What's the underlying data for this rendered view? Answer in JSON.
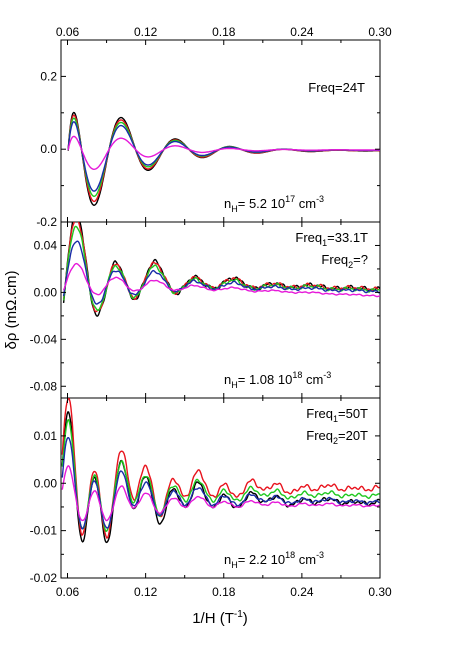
{
  "chart_data": {
    "type": "line",
    "xlabel": "1/H (T",
    "xlabel_exp": "-1",
    "xlabel_close": ")",
    "ylabel": "δρ (mΩ.cm)",
    "x_ticks": [
      "0.06",
      "0.12",
      "0.18",
      "0.24",
      "0.30"
    ],
    "x_tick_values": [
      0.06,
      0.12,
      0.18,
      0.24,
      0.3
    ],
    "xlim": [
      0.055,
      0.3
    ],
    "series_colors": [
      "#000000",
      "#e8141e",
      "#1fc81f",
      "#1a2ca8",
      "#e619d9"
    ],
    "panels": [
      {
        "ylim": [
          -0.2,
          0.3
        ],
        "y_tick_values": [
          -0.2,
          0.0,
          0.2
        ],
        "y_ticks": [
          "-0.2",
          "0.0",
          "0.2"
        ],
        "freq_lines": [
          "Freq=24T"
        ],
        "nh": {
          "prefix": "n",
          "sub": "H",
          "text": "= 5.2 10",
          "exp1": "17",
          "unit": " cm",
          "exp2": "-3"
        },
        "osc": {
          "type": "single",
          "x0": 0.0605,
          "comps": [
            {
              "f": 24,
              "phi": 1.5708
            }
          ],
          "damp": 0.04
        },
        "curves": [
          {
            "amp": 0.254,
            "offset": -0.004
          },
          {
            "amp": 0.236,
            "offset": -0.004
          },
          {
            "amp": 0.214,
            "offset": -0.003
          },
          {
            "amp": 0.19,
            "offset": -0.003
          },
          {
            "amp": 0.09,
            "offset": -0.002
          }
        ]
      },
      {
        "ylim": [
          -0.09,
          0.06
        ],
        "y_tick_values": [
          -0.08,
          -0.04,
          0.0,
          0.04
        ],
        "y_ticks": [
          "-0.08",
          "-0.04",
          "0.00",
          "0.04"
        ],
        "freq_lines": [
          "Freq1=33.1T",
          "Freq2=?"
        ],
        "freq_labels": [
          {
            "a": "Freq",
            "sub": "1",
            "b": "=33.1T"
          },
          {
            "a": "Freq",
            "sub": "2",
            "b": "=?"
          }
        ],
        "nh": {
          "prefix": "n",
          "sub": "H",
          "text": "= 1.08 10",
          "exp1": "18",
          "unit": " cm",
          "exp2": "-3"
        },
        "osc": {
          "type": "multi",
          "x0": 0.057,
          "comps": [
            {
              "f": 33.1,
              "phi": -0.6
            },
            {
              "f": 17,
              "phi": 0.5
            }
          ],
          "damp": 0.05
        },
        "curves": [
          {
            "amp": 0.05,
            "w2": 0.35,
            "offset": 0.01,
            "slope": -0.04
          },
          {
            "amp": 0.046,
            "w2": 0.35,
            "offset": 0.01,
            "slope": -0.04
          },
          {
            "amp": 0.042,
            "w2": 0.33,
            "offset": 0.009,
            "slope": -0.04
          },
          {
            "amp": 0.032,
            "w2": 0.3,
            "offset": 0.008,
            "slope": -0.04
          },
          {
            "amp": 0.016,
            "w2": 0.2,
            "offset": 0.006,
            "slope": -0.05
          }
        ]
      },
      {
        "ylim": [
          -0.02,
          0.018
        ],
        "y_tick_values": [
          -0.02,
          -0.01,
          0.0,
          0.01
        ],
        "y_ticks": [
          "-0.02",
          "-0.01",
          "0.00",
          "0.01"
        ],
        "freq_lines": [
          "Freq1=50T",
          "Freq2=20T"
        ],
        "freq_labels": [
          {
            "a": "Freq",
            "sub": "1",
            "b": "=50T"
          },
          {
            "a": "Freq",
            "sub": "2",
            "b": "=20T"
          }
        ],
        "nh": {
          "prefix": "n",
          "sub": "H",
          "text": "= 2.2 10",
          "exp1": "18",
          "unit": " cm",
          "exp2": "-3"
        },
        "osc": {
          "type": "multi",
          "x0": 0.056,
          "comps": [
            {
              "f": 50,
              "phi": 0.0
            },
            {
              "f": 20,
              "phi": 1.2
            }
          ],
          "damp": 0.06
        },
        "curves": [
          {
            "amp": 0.0125,
            "w2": 0.55,
            "offset": -0.003,
            "slope": -0.006
          },
          {
            "amp": 0.013,
            "w2": 0.6,
            "offset": -0.001,
            "slope": 0.0
          },
          {
            "amp": 0.0105,
            "w2": 0.55,
            "offset": -0.002,
            "slope": -0.003
          },
          {
            "amp": 0.009,
            "w2": 0.5,
            "offset": -0.003,
            "slope": -0.005
          },
          {
            "amp": 0.0055,
            "w2": 0.45,
            "offset": -0.004,
            "slope": -0.004
          }
        ]
      }
    ]
  }
}
